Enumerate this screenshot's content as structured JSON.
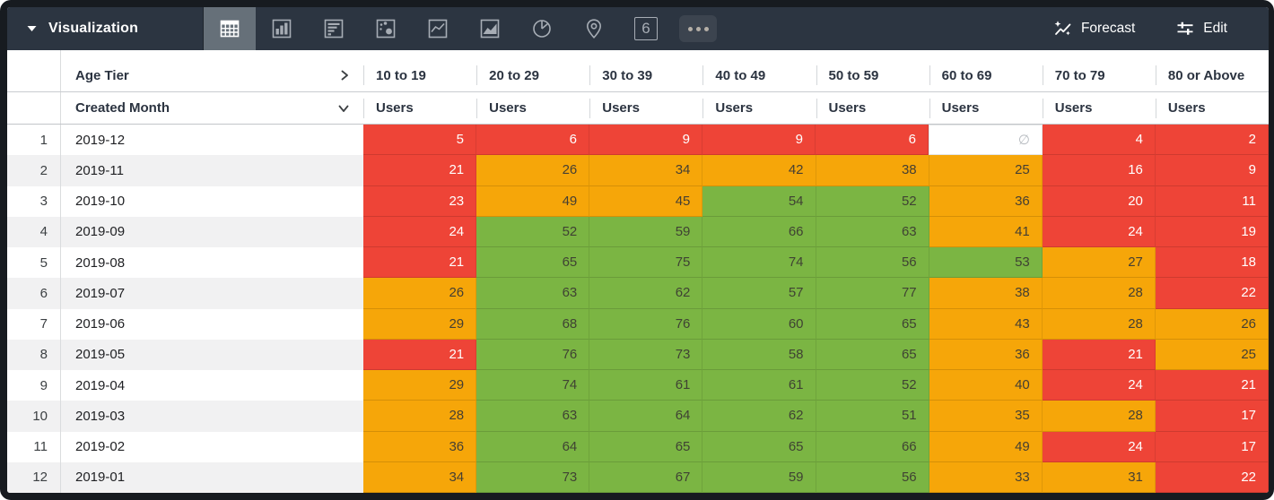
{
  "toolbar": {
    "title": "Visualization",
    "title_caret_icon": "caret-down-icon",
    "vis_types": [
      {
        "name": "table-vis-icon",
        "selected": true
      },
      {
        "name": "column-chart-vis-icon",
        "selected": false
      },
      {
        "name": "bar-chart-vis-icon",
        "selected": false
      },
      {
        "name": "scatter-vis-icon",
        "selected": false
      },
      {
        "name": "line-chart-vis-icon",
        "selected": false
      },
      {
        "name": "area-chart-vis-icon",
        "selected": false
      },
      {
        "name": "pie-chart-vis-icon",
        "selected": false
      },
      {
        "name": "map-pin-vis-icon",
        "selected": false
      },
      {
        "name": "single-value-vis-icon",
        "selected": false,
        "glyph": "6"
      },
      {
        "name": "more-vis-types-icon",
        "selected": false
      }
    ],
    "forecast_label": "Forecast",
    "forecast_icon": "sparkle-trend-icon",
    "edit_label": "Edit",
    "edit_icon": "tune-sliders-icon"
  },
  "table": {
    "pivot_field": "Age Tier",
    "pivot_expand_icon": "chevron-right-icon",
    "row_field": "Created Month",
    "row_sort_icon": "chevron-down-icon",
    "measure_label": "Users",
    "null_symbol": "∅",
    "pivot_values": [
      "10 to 19",
      "20 to 29",
      "30 to 39",
      "40 to 49",
      "50 to 59",
      "60 to 69",
      "70 to 79",
      "80 or Above"
    ],
    "rows": [
      {
        "num": "1",
        "month": "2019-12",
        "cells": [
          {
            "value": "5",
            "level": "red"
          },
          {
            "value": "6",
            "level": "red"
          },
          {
            "value": "9",
            "level": "red"
          },
          {
            "value": "9",
            "level": "red"
          },
          {
            "value": "6",
            "level": "red"
          },
          {
            "value": "∅",
            "level": "null"
          },
          {
            "value": "4",
            "level": "red"
          },
          {
            "value": "2",
            "level": "red"
          }
        ]
      },
      {
        "num": "2",
        "month": "2019-11",
        "cells": [
          {
            "value": "21",
            "level": "red"
          },
          {
            "value": "26",
            "level": "orange"
          },
          {
            "value": "34",
            "level": "orange"
          },
          {
            "value": "42",
            "level": "orange"
          },
          {
            "value": "38",
            "level": "orange"
          },
          {
            "value": "25",
            "level": "orange"
          },
          {
            "value": "16",
            "level": "red"
          },
          {
            "value": "9",
            "level": "red"
          }
        ]
      },
      {
        "num": "3",
        "month": "2019-10",
        "cells": [
          {
            "value": "23",
            "level": "red"
          },
          {
            "value": "49",
            "level": "orange"
          },
          {
            "value": "45",
            "level": "orange"
          },
          {
            "value": "54",
            "level": "green"
          },
          {
            "value": "52",
            "level": "green"
          },
          {
            "value": "36",
            "level": "orange"
          },
          {
            "value": "20",
            "level": "red"
          },
          {
            "value": "11",
            "level": "red"
          }
        ]
      },
      {
        "num": "4",
        "month": "2019-09",
        "cells": [
          {
            "value": "24",
            "level": "red"
          },
          {
            "value": "52",
            "level": "green"
          },
          {
            "value": "59",
            "level": "green"
          },
          {
            "value": "66",
            "level": "green"
          },
          {
            "value": "63",
            "level": "green"
          },
          {
            "value": "41",
            "level": "orange"
          },
          {
            "value": "24",
            "level": "red"
          },
          {
            "value": "19",
            "level": "red"
          }
        ]
      },
      {
        "num": "5",
        "month": "2019-08",
        "cells": [
          {
            "value": "21",
            "level": "red"
          },
          {
            "value": "65",
            "level": "green"
          },
          {
            "value": "75",
            "level": "green"
          },
          {
            "value": "74",
            "level": "green"
          },
          {
            "value": "56",
            "level": "green"
          },
          {
            "value": "53",
            "level": "green"
          },
          {
            "value": "27",
            "level": "orange"
          },
          {
            "value": "18",
            "level": "red"
          }
        ]
      },
      {
        "num": "6",
        "month": "2019-07",
        "cells": [
          {
            "value": "26",
            "level": "orange"
          },
          {
            "value": "63",
            "level": "green"
          },
          {
            "value": "62",
            "level": "green"
          },
          {
            "value": "57",
            "level": "green"
          },
          {
            "value": "77",
            "level": "green"
          },
          {
            "value": "38",
            "level": "orange"
          },
          {
            "value": "28",
            "level": "orange"
          },
          {
            "value": "22",
            "level": "red"
          }
        ]
      },
      {
        "num": "7",
        "month": "2019-06",
        "cells": [
          {
            "value": "29",
            "level": "orange"
          },
          {
            "value": "68",
            "level": "green"
          },
          {
            "value": "76",
            "level": "green"
          },
          {
            "value": "60",
            "level": "green"
          },
          {
            "value": "65",
            "level": "green"
          },
          {
            "value": "43",
            "level": "orange"
          },
          {
            "value": "28",
            "level": "orange"
          },
          {
            "value": "26",
            "level": "orange"
          }
        ]
      },
      {
        "num": "8",
        "month": "2019-05",
        "cells": [
          {
            "value": "21",
            "level": "red"
          },
          {
            "value": "76",
            "level": "green"
          },
          {
            "value": "73",
            "level": "green"
          },
          {
            "value": "58",
            "level": "green"
          },
          {
            "value": "65",
            "level": "green"
          },
          {
            "value": "36",
            "level": "orange"
          },
          {
            "value": "21",
            "level": "red"
          },
          {
            "value": "25",
            "level": "orange"
          }
        ]
      },
      {
        "num": "9",
        "month": "2019-04",
        "cells": [
          {
            "value": "29",
            "level": "orange"
          },
          {
            "value": "74",
            "level": "green"
          },
          {
            "value": "61",
            "level": "green"
          },
          {
            "value": "61",
            "level": "green"
          },
          {
            "value": "52",
            "level": "green"
          },
          {
            "value": "40",
            "level": "orange"
          },
          {
            "value": "24",
            "level": "red"
          },
          {
            "value": "21",
            "level": "red"
          }
        ]
      },
      {
        "num": "10",
        "month": "2019-03",
        "cells": [
          {
            "value": "28",
            "level": "orange"
          },
          {
            "value": "63",
            "level": "green"
          },
          {
            "value": "64",
            "level": "green"
          },
          {
            "value": "62",
            "level": "green"
          },
          {
            "value": "51",
            "level": "green"
          },
          {
            "value": "35",
            "level": "orange"
          },
          {
            "value": "28",
            "level": "orange"
          },
          {
            "value": "17",
            "level": "red"
          }
        ]
      },
      {
        "num": "11",
        "month": "2019-02",
        "cells": [
          {
            "value": "36",
            "level": "orange"
          },
          {
            "value": "64",
            "level": "green"
          },
          {
            "value": "65",
            "level": "green"
          },
          {
            "value": "65",
            "level": "green"
          },
          {
            "value": "66",
            "level": "green"
          },
          {
            "value": "49",
            "level": "orange"
          },
          {
            "value": "24",
            "level": "red"
          },
          {
            "value": "17",
            "level": "red"
          }
        ]
      },
      {
        "num": "12",
        "month": "2019-01",
        "cells": [
          {
            "value": "34",
            "level": "orange"
          },
          {
            "value": "73",
            "level": "green"
          },
          {
            "value": "67",
            "level": "green"
          },
          {
            "value": "59",
            "level": "green"
          },
          {
            "value": "56",
            "level": "green"
          },
          {
            "value": "33",
            "level": "orange"
          },
          {
            "value": "31",
            "level": "orange"
          },
          {
            "value": "22",
            "level": "red"
          }
        ]
      }
    ]
  },
  "colors": {
    "red": "#ee4437",
    "orange": "#f6a609",
    "green": "#7bb543",
    "toolbar_bg": "#2c3541",
    "selected_icon_bg": "#667079"
  }
}
